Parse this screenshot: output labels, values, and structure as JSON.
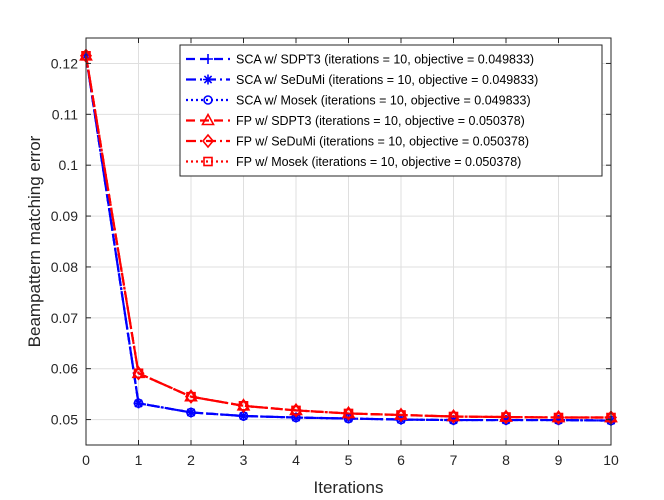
{
  "chart_data": {
    "type": "line",
    "title": "",
    "xlabel": "Iterations",
    "ylabel": "Beampattern matching error",
    "xlim": [
      0,
      10
    ],
    "ylim": [
      0.045,
      0.125
    ],
    "xticks": [
      "0",
      "1",
      "2",
      "3",
      "4",
      "5",
      "6",
      "7",
      "8",
      "9",
      "10"
    ],
    "yticks": [
      "0.05",
      "0.06",
      "0.07",
      "0.08",
      "0.09",
      "0.1",
      "0.11",
      "0.12"
    ],
    "grid": true,
    "legend_position": "top-right",
    "x": [
      0,
      1,
      2,
      3,
      4,
      5,
      6,
      7,
      8,
      9,
      10
    ],
    "series": [
      {
        "name": "SCA w/ SDPT3 (iterations = 10, objective = 0.049833)",
        "color": "#0000ff",
        "line_style": "dashed",
        "marker": "plus",
        "values": [
          0.1215,
          0.0532,
          0.0514,
          0.0507,
          0.0504,
          0.0502,
          0.05,
          0.0499,
          0.0499,
          0.0499,
          0.0498
        ]
      },
      {
        "name": "SCA w/ SeDuMi (iterations = 10, objective = 0.049833)",
        "color": "#0000ff",
        "line_style": "dashdot",
        "marker": "asterisk",
        "values": [
          0.1215,
          0.0532,
          0.0514,
          0.0507,
          0.0504,
          0.0502,
          0.05,
          0.0499,
          0.0499,
          0.0499,
          0.0498
        ]
      },
      {
        "name": "SCA w/ Mosek (iterations = 10, objective = 0.049833)",
        "color": "#0000ff",
        "line_style": "dotted",
        "marker": "circle",
        "values": [
          0.1215,
          0.0532,
          0.0514,
          0.0507,
          0.0504,
          0.0502,
          0.05,
          0.0499,
          0.0499,
          0.0499,
          0.0498
        ]
      },
      {
        "name": "FP w/ SDPT3 (iterations = 10, objective = 0.050378)",
        "color": "#ff0000",
        "line_style": "dashed",
        "marker": "triangle",
        "values": [
          0.1215,
          0.0591,
          0.0545,
          0.0527,
          0.0518,
          0.0512,
          0.0509,
          0.0506,
          0.0505,
          0.0504,
          0.0504
        ]
      },
      {
        "name": "FP w/ SeDuMi (iterations = 10, objective = 0.050378)",
        "color": "#ff0000",
        "line_style": "dashdot",
        "marker": "diamond",
        "values": [
          0.1215,
          0.0591,
          0.0545,
          0.0527,
          0.0518,
          0.0512,
          0.0509,
          0.0506,
          0.0505,
          0.0504,
          0.0504
        ]
      },
      {
        "name": "FP w/ Mosek (iterations = 10, objective = 0.050378)",
        "color": "#ff0000",
        "line_style": "dotted",
        "marker": "square",
        "values": [
          0.1215,
          0.0591,
          0.0545,
          0.0527,
          0.0518,
          0.0512,
          0.0509,
          0.0506,
          0.0505,
          0.0504,
          0.0504
        ]
      }
    ]
  }
}
